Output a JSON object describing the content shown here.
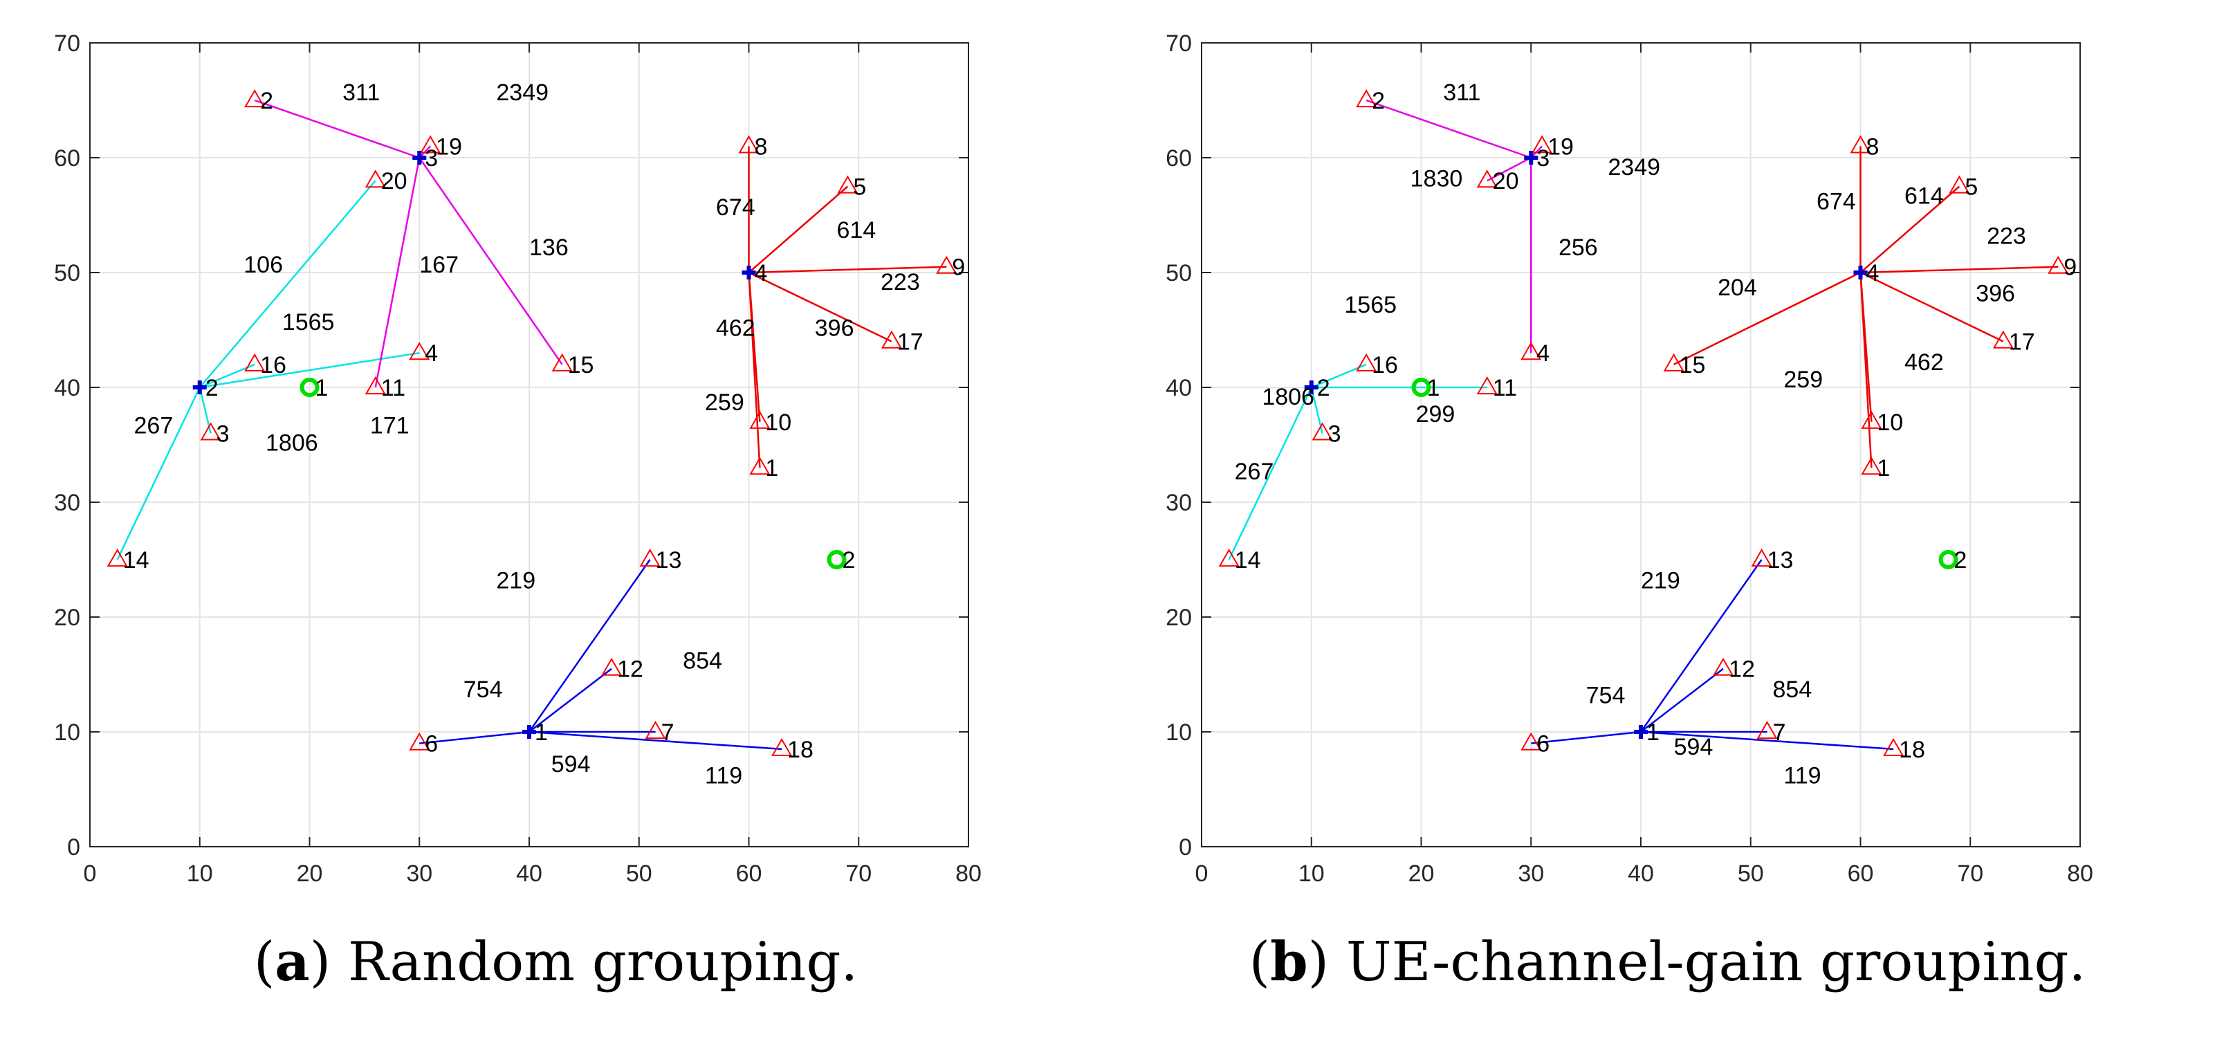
{
  "chart_data": [
    {
      "type": "scatter",
      "panel": "a",
      "caption_letter": "a",
      "caption_text": "Random grouping.",
      "xlim": [
        0,
        80
      ],
      "ylim": [
        0,
        70
      ],
      "xticks": [
        0,
        10,
        20,
        30,
        40,
        50,
        60,
        70,
        80
      ],
      "yticks": [
        0,
        10,
        20,
        30,
        40,
        50,
        60,
        70
      ],
      "grid": true,
      "green_markers": [
        {
          "label": "1",
          "x": 20,
          "y": 40
        },
        {
          "label": "2",
          "x": 68,
          "y": 25
        }
      ],
      "groups": [
        {
          "color": "#00e5e5",
          "hub": {
            "label": "2",
            "x": 10,
            "y": 40
          },
          "ues": [
            {
              "label": "20",
              "x": 26,
              "y": 58
            },
            {
              "label": "16",
              "x": 15,
              "y": 42
            },
            {
              "label": "4",
              "x": 30,
              "y": 43
            },
            {
              "label": "3",
              "x": 11,
              "y": 36
            },
            {
              "label": "14",
              "x": 2.5,
              "y": 25
            }
          ]
        },
        {
          "color": "#e600e6",
          "hub": {
            "label": "3",
            "x": 30,
            "y": 60
          },
          "ues": [
            {
              "label": "2",
              "x": 15,
              "y": 65
            },
            {
              "label": "19",
              "x": 31,
              "y": 61
            },
            {
              "label": "11",
              "x": 26,
              "y": 40
            },
            {
              "label": "15",
              "x": 43,
              "y": 42
            }
          ]
        },
        {
          "color": "#ee0000",
          "hub": {
            "label": "4",
            "x": 60,
            "y": 50
          },
          "ues": [
            {
              "label": "8",
              "x": 60,
              "y": 61
            },
            {
              "label": "5",
              "x": 69,
              "y": 57.5
            },
            {
              "label": "9",
              "x": 78,
              "y": 50.5
            },
            {
              "label": "17",
              "x": 73,
              "y": 44
            },
            {
              "label": "10",
              "x": 61,
              "y": 37
            },
            {
              "label": "1",
              "x": 61,
              "y": 33
            }
          ]
        },
        {
          "color": "#0000ee",
          "hub": {
            "label": "1",
            "x": 40,
            "y": 10
          },
          "ues": [
            {
              "label": "13",
              "x": 51,
              "y": 25
            },
            {
              "label": "12",
              "x": 47.5,
              "y": 15.5
            },
            {
              "label": "7",
              "x": 51.5,
              "y": 10
            },
            {
              "label": "18",
              "x": 63,
              "y": 8.5
            },
            {
              "label": "6",
              "x": 30,
              "y": 9
            }
          ]
        }
      ],
      "annotations": [
        {
          "text": "311",
          "x": 23,
          "y": 65
        },
        {
          "text": "2349",
          "x": 37,
          "y": 65
        },
        {
          "text": "106",
          "x": 14,
          "y": 50
        },
        {
          "text": "167",
          "x": 30,
          "y": 50
        },
        {
          "text": "136",
          "x": 40,
          "y": 51.5
        },
        {
          "text": "1565",
          "x": 17.5,
          "y": 45
        },
        {
          "text": "267",
          "x": 4,
          "y": 36
        },
        {
          "text": "1806",
          "x": 16,
          "y": 34.5
        },
        {
          "text": "171",
          "x": 25.5,
          "y": 36
        },
        {
          "text": "674",
          "x": 57,
          "y": 55
        },
        {
          "text": "614",
          "x": 68,
          "y": 53
        },
        {
          "text": "223",
          "x": 72,
          "y": 48.5
        },
        {
          "text": "462",
          "x": 57,
          "y": 44.5
        },
        {
          "text": "396",
          "x": 66,
          "y": 44.5
        },
        {
          "text": "259",
          "x": 56,
          "y": 38
        },
        {
          "text": "219",
          "x": 37,
          "y": 22.5
        },
        {
          "text": "854",
          "x": 54,
          "y": 15.5
        },
        {
          "text": "754",
          "x": 34,
          "y": 13
        },
        {
          "text": "594",
          "x": 42,
          "y": 6.5
        },
        {
          "text": "119",
          "x": 56,
          "y": 5.5
        }
      ]
    },
    {
      "type": "scatter",
      "panel": "b",
      "caption_letter": "b",
      "caption_text": "UE-channel-gain grouping.",
      "xlim": [
        0,
        80
      ],
      "ylim": [
        0,
        70
      ],
      "xticks": [
        0,
        10,
        20,
        30,
        40,
        50,
        60,
        70,
        80
      ],
      "yticks": [
        0,
        10,
        20,
        30,
        40,
        50,
        60,
        70
      ],
      "grid": true,
      "green_markers": [
        {
          "label": "1",
          "x": 20,
          "y": 40
        },
        {
          "label": "2",
          "x": 68,
          "y": 25
        }
      ],
      "groups": [
        {
          "color": "#00e5e5",
          "hub": {
            "label": "2",
            "x": 10,
            "y": 40
          },
          "ues": [
            {
              "label": "16",
              "x": 15,
              "y": 42
            },
            {
              "label": "11",
              "x": 26,
              "y": 40
            },
            {
              "label": "3",
              "x": 11,
              "y": 36
            },
            {
              "label": "14",
              "x": 2.5,
              "y": 25
            }
          ]
        },
        {
          "color": "#e600e6",
          "hub": {
            "label": "3",
            "x": 30,
            "y": 60
          },
          "ues": [
            {
              "label": "2",
              "x": 15,
              "y": 65
            },
            {
              "label": "19",
              "x": 31,
              "y": 61
            },
            {
              "label": "20",
              "x": 26,
              "y": 58
            },
            {
              "label": "4",
              "x": 30,
              "y": 43
            }
          ]
        },
        {
          "color": "#ee0000",
          "hub": {
            "label": "4",
            "x": 60,
            "y": 50
          },
          "ues": [
            {
              "label": "8",
              "x": 60,
              "y": 61
            },
            {
              "label": "5",
              "x": 69,
              "y": 57.5
            },
            {
              "label": "9",
              "x": 78,
              "y": 50.5
            },
            {
              "label": "17",
              "x": 73,
              "y": 44
            },
            {
              "label": "15",
              "x": 43,
              "y": 42
            },
            {
              "label": "10",
              "x": 61,
              "y": 37
            },
            {
              "label": "1",
              "x": 61,
              "y": 33
            }
          ]
        },
        {
          "color": "#0000ee",
          "hub": {
            "label": "1",
            "x": 40,
            "y": 10
          },
          "ues": [
            {
              "label": "13",
              "x": 51,
              "y": 25
            },
            {
              "label": "12",
              "x": 47.5,
              "y": 15.5
            },
            {
              "label": "7",
              "x": 51.5,
              "y": 10
            },
            {
              "label": "18",
              "x": 63,
              "y": 8.5
            },
            {
              "label": "6",
              "x": 30,
              "y": 9
            }
          ]
        }
      ],
      "annotations": [
        {
          "text": "311",
          "x": 22,
          "y": 65
        },
        {
          "text": "2349",
          "x": 37,
          "y": 58.5
        },
        {
          "text": "1830",
          "x": 19,
          "y": 57.5
        },
        {
          "text": "256",
          "x": 32.5,
          "y": 51.5
        },
        {
          "text": "674",
          "x": 56,
          "y": 55.5
        },
        {
          "text": "614",
          "x": 64,
          "y": 56
        },
        {
          "text": "223",
          "x": 71.5,
          "y": 52.5
        },
        {
          "text": "204",
          "x": 47,
          "y": 48
        },
        {
          "text": "396",
          "x": 70.5,
          "y": 47.5
        },
        {
          "text": "1565",
          "x": 13,
          "y": 46.5
        },
        {
          "text": "462",
          "x": 64,
          "y": 41.5
        },
        {
          "text": "259",
          "x": 53,
          "y": 40
        },
        {
          "text": "1806",
          "x": 5.5,
          "y": 38.5
        },
        {
          "text": "299",
          "x": 19.5,
          "y": 37
        },
        {
          "text": "267",
          "x": 3,
          "y": 32
        },
        {
          "text": "219",
          "x": 40,
          "y": 22.5
        },
        {
          "text": "754",
          "x": 35,
          "y": 12.5
        },
        {
          "text": "854",
          "x": 52,
          "y": 13
        },
        {
          "text": "594",
          "x": 43,
          "y": 8
        },
        {
          "text": "119",
          "x": 53,
          "y": 5.5
        }
      ]
    }
  ]
}
